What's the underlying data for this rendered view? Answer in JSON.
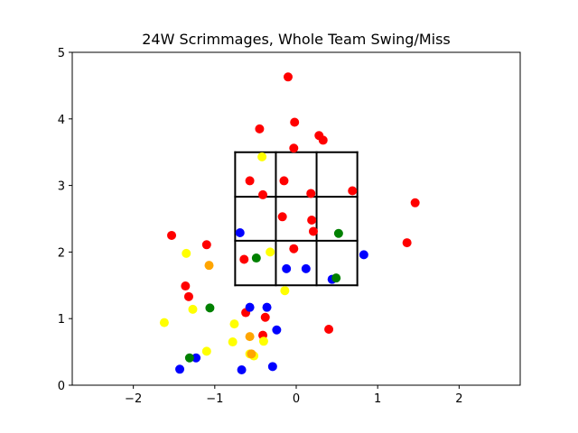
{
  "chart_data": {
    "type": "scatter",
    "title": "24W Scrimmages, Whole Team Swing/Miss",
    "xlabel": "",
    "ylabel": "",
    "xlim": [
      -2.75,
      2.75
    ],
    "ylim": [
      0,
      5
    ],
    "xticks": [
      -2,
      -1,
      0,
      1,
      2
    ],
    "yticks": [
      0,
      1,
      2,
      3,
      4,
      5
    ],
    "xtick_labels": [
      "−2",
      "−1",
      "0",
      "1",
      "2"
    ],
    "ytick_labels": [
      "0",
      "1",
      "2",
      "3",
      "4",
      "5"
    ],
    "grid": false,
    "colors": {
      "red": "#ff0000",
      "yellow": "#ffff00",
      "blue": "#0000ff",
      "green": "#008000",
      "orange": "#ffa500",
      "zone": "#000000"
    },
    "strike_zone": {
      "x": [
        -0.75,
        -0.25,
        0.25,
        0.75
      ],
      "y": [
        1.5,
        2.17,
        2.83,
        3.5
      ]
    },
    "series": [
      {
        "color": "red",
        "x": [
          -0.1,
          -0.02,
          -0.45,
          0.28,
          0.33,
          -0.03,
          -0.57,
          -0.15,
          -0.41,
          0.18,
          0.69,
          -0.17,
          0.19,
          0.21,
          1.46,
          -1.53,
          -1.1,
          1.36,
          -0.03,
          -0.64,
          -1.36,
          -1.32,
          -0.62,
          -0.38,
          0.4,
          -0.41
        ],
        "y": [
          4.63,
          3.95,
          3.85,
          3.75,
          3.68,
          3.56,
          3.07,
          3.07,
          2.86,
          2.88,
          2.92,
          2.53,
          2.48,
          2.31,
          2.74,
          2.25,
          2.11,
          2.14,
          2.05,
          1.89,
          1.49,
          1.33,
          1.09,
          1.02,
          0.84,
          0.75
        ]
      },
      {
        "color": "yellow",
        "x": [
          -0.42,
          -1.35,
          -0.32,
          -0.14,
          -1.62,
          -1.27,
          -0.76,
          -0.78,
          -1.1,
          -0.4,
          -0.57,
          -0.52
        ],
        "y": [
          3.43,
          1.98,
          2.0,
          1.42,
          0.94,
          1.14,
          0.92,
          0.65,
          0.51,
          0.66,
          0.47,
          0.44
        ]
      },
      {
        "color": "blue",
        "x": [
          -0.69,
          -0.12,
          0.12,
          0.83,
          0.44,
          -0.57,
          -0.36,
          -0.24,
          -1.43,
          -1.23,
          -0.67,
          -0.29
        ],
        "y": [
          2.29,
          1.75,
          1.75,
          1.96,
          1.59,
          1.17,
          1.17,
          0.83,
          0.24,
          0.41,
          0.23,
          0.28
        ]
      },
      {
        "color": "green",
        "x": [
          0.52,
          -0.49,
          0.49,
          -1.06,
          -1.31
        ],
        "y": [
          2.28,
          1.91,
          1.61,
          1.16,
          0.41
        ]
      },
      {
        "color": "orange",
        "x": [
          -1.07,
          -0.57,
          -0.55
        ],
        "y": [
          1.8,
          0.73,
          0.47
        ]
      }
    ]
  }
}
